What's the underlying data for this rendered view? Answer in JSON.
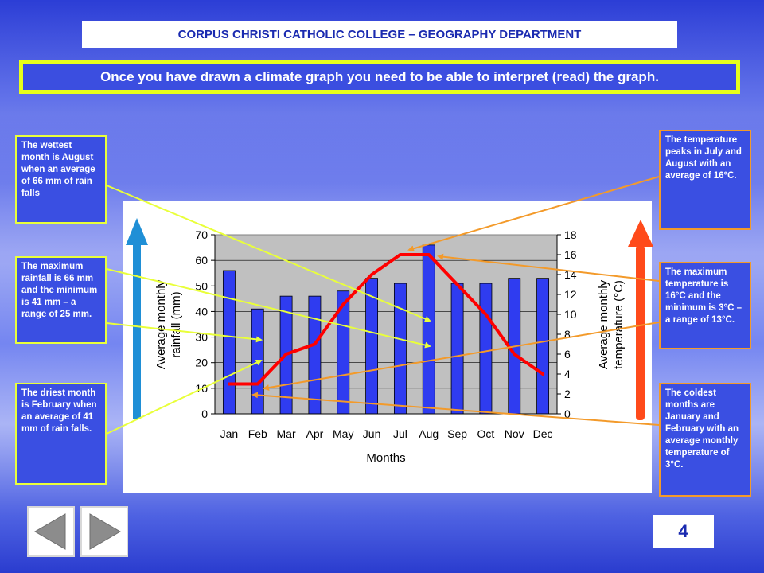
{
  "header": {
    "title": "CORPUS CHRISTI CATHOLIC COLLEGE – GEOGRAPHY DEPARTMENT"
  },
  "subtitle": {
    "text": "Once you have drawn a climate graph you need to be able to interpret (read) the graph."
  },
  "notes": {
    "wettest": "The wettest month is August when an average of 66 mm of rain falls",
    "max_rainfall": "The maximum rainfall is 66 mm and the minimum is 41 mm – a range of 25 mm.",
    "driest": "The driest month is February when an average of 41 mm of rain falls.",
    "temp_peak": "The temperature peaks in July and August with an average of 16°C.",
    "max_temp": "The maximum temperature is 16°C and the minimum is 3°C – a range of 13°C.",
    "coldest": "The coldest months are January and February with an average monthly temperature of 3°C."
  },
  "page_number": "4",
  "colors": {
    "background": "#3b4ee0",
    "yellow_border": "#e9ff3a",
    "orange_border": "#f39a2a",
    "bar_fill": "#2f3cf0",
    "temp_line": "#ff0000",
    "plot_area": "#c0c0c0",
    "rain_arrow": "#1f8fd6",
    "temp_arrow": "#ff4a1a"
  },
  "navigation": {
    "prev_icon": "triangle-left-icon",
    "next_icon": "triangle-right-icon"
  },
  "chart_data": {
    "type": "bar+line",
    "categories": [
      "Jan",
      "Feb",
      "Mar",
      "Apr",
      "May",
      "Jun",
      "Jul",
      "Aug",
      "Sep",
      "Oct",
      "Nov",
      "Dec"
    ],
    "series": [
      {
        "type": "bar",
        "axis": "left",
        "values": [
          56,
          41,
          46,
          46,
          48,
          53,
          51,
          66,
          51,
          51,
          53,
          53
        ]
      },
      {
        "type": "line",
        "axis": "right",
        "values": [
          3,
          3,
          6,
          7,
          11,
          14,
          16,
          16,
          13,
          10,
          6,
          4
        ]
      }
    ],
    "xlabel": "Months",
    "ylabel_left": [
      "Average monthly",
      "rainfall (mm)"
    ],
    "ylabel_right": [
      "Average monthly",
      "temperature (°C)"
    ],
    "ylim_left": [
      0,
      70
    ],
    "yticks_left": [
      0,
      10,
      20,
      30,
      40,
      50,
      60,
      70
    ],
    "ylim_right": [
      0,
      18
    ],
    "yticks_right": [
      0,
      2,
      4,
      6,
      8,
      10,
      12,
      14,
      16,
      18
    ],
    "grid": true
  }
}
